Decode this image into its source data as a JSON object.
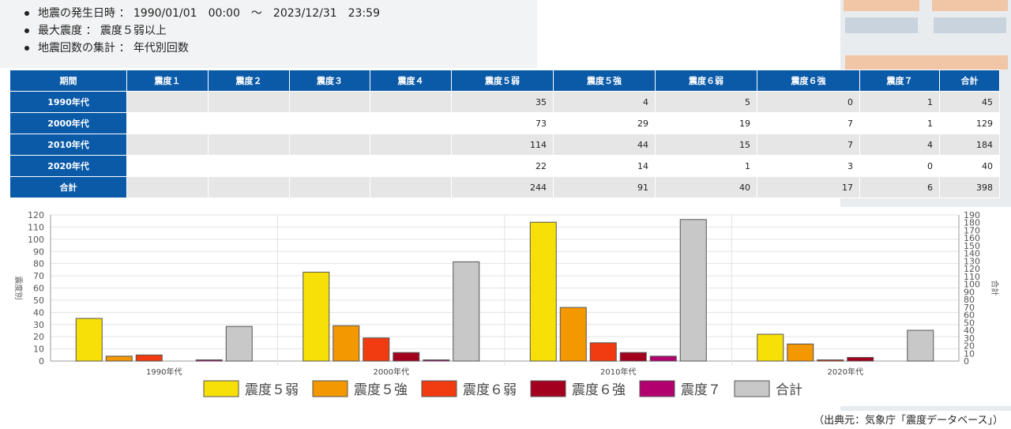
{
  "criteria": [
    "地震の発生日時 ： 1990/01/01　00:00　～　2023/12/31　23:59",
    "最大震度 ： 震度５弱以上",
    "地震回数の集計 ： 年代別回数"
  ],
  "table": {
    "headers": [
      "期間",
      "震度１",
      "震度２",
      "震度３",
      "震度４",
      "震度５弱",
      "震度５強",
      "震度６弱",
      "震度６強",
      "震度７",
      "合計"
    ],
    "rows": [
      {
        "label": "1990年代",
        "cells": [
          "",
          "",
          "",
          "",
          "35",
          "4",
          "5",
          "0",
          "1",
          "45"
        ]
      },
      {
        "label": "2000年代",
        "cells": [
          "",
          "",
          "",
          "",
          "73",
          "29",
          "19",
          "7",
          "1",
          "129"
        ]
      },
      {
        "label": "2010年代",
        "cells": [
          "",
          "",
          "",
          "",
          "114",
          "44",
          "15",
          "7",
          "4",
          "184"
        ]
      },
      {
        "label": "2020年代",
        "cells": [
          "",
          "",
          "",
          "",
          "22",
          "14",
          "1",
          "3",
          "0",
          "40"
        ]
      },
      {
        "label": "合計",
        "cells": [
          "",
          "",
          "",
          "",
          "244",
          "91",
          "40",
          "17",
          "6",
          "398"
        ]
      }
    ]
  },
  "chart_data": {
    "type": "bar",
    "categories": [
      "1990年代",
      "2000年代",
      "2010年代",
      "2020年代"
    ],
    "ylabel": "震度別",
    "y2label": "合計",
    "ylim": [
      0,
      120
    ],
    "y2lim": [
      0,
      190
    ],
    "yticks": [
      0,
      10,
      20,
      30,
      40,
      50,
      60,
      70,
      80,
      90,
      100,
      110,
      120
    ],
    "y2ticks": [
      0,
      10,
      20,
      30,
      40,
      50,
      60,
      70,
      80,
      90,
      100,
      110,
      120,
      130,
      140,
      150,
      160,
      170,
      180,
      190
    ],
    "series": [
      {
        "name": "震度５弱",
        "values": [
          35,
          73,
          114,
          22
        ],
        "color": "#f7e007",
        "axis": "left"
      },
      {
        "name": "震度５強",
        "values": [
          4,
          29,
          44,
          14
        ],
        "color": "#f39800",
        "axis": "left"
      },
      {
        "name": "震度６弱",
        "values": [
          5,
          19,
          15,
          1
        ],
        "color": "#f03c10",
        "axis": "left"
      },
      {
        "name": "震度６強",
        "values": [
          0,
          7,
          7,
          3
        ],
        "color": "#a3001f",
        "axis": "left"
      },
      {
        "name": "震度７",
        "values": [
          1,
          1,
          4,
          0
        ],
        "color": "#b2006e",
        "axis": "left"
      },
      {
        "name": "合計",
        "values": [
          45,
          129,
          184,
          40
        ],
        "color": "#c8c8c8",
        "axis": "right"
      }
    ],
    "legend": "bottom",
    "grid": true
  },
  "source": "（出典元：気象庁「震度データベース」）"
}
